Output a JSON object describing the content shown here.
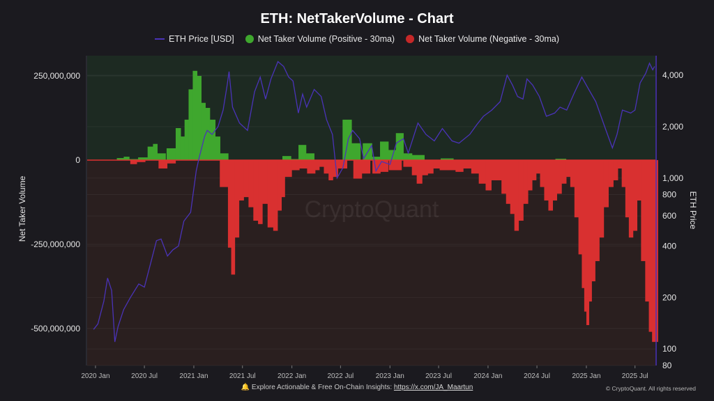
{
  "title": "ETH: NetTakerVolume - Chart",
  "legend": {
    "price_label": "ETH Price [USD]",
    "positive_label": "Net Taker Volume (Positive - 30ma)",
    "negative_label": "Net Taker Volume (Negative - 30ma)"
  },
  "footer": {
    "text": "Explore Actionable & Free On-Chain Insights:",
    "link": "https://x.com/JA_Maartun",
    "copyright": "© CryptoQuant. All rights reserved"
  },
  "watermark": "CryptoQuant",
  "colors": {
    "background": "#1b1a1f",
    "positive_zone": "#1d2a22",
    "negative_zone": "#2a1f1f",
    "positive": "#3fa72e",
    "negative": "#d93030",
    "price": "#4a33b8",
    "zero_line": "#e03030"
  },
  "chart_data": {
    "type": "bar",
    "title": "ETH: NetTakerVolume - Chart",
    "xlabel": "",
    "ylabel": "Net Taker Volume",
    "y2label": "ETH Price",
    "x_ticks": [
      "2020 Jan",
      "2020 Jul",
      "2021 Jan",
      "2021 Jul",
      "2022 Jan",
      "2022 Jul",
      "2023 Jan",
      "2023 Jul",
      "2024 Jan",
      "2024 Jul",
      "2025 Jan",
      "2025 Jul"
    ],
    "y_ticks": [
      "250,000,000",
      "0",
      "-250,000,000",
      "-500,000,000"
    ],
    "y_tick_values": [
      250000000,
      0,
      -250000000,
      -500000000
    ],
    "y2_ticks": [
      "4,000",
      "2,000",
      "1,000",
      "800",
      "600",
      "400",
      "200",
      "100",
      "80"
    ],
    "y2_tick_values": [
      4000,
      2000,
      1000,
      800,
      600,
      400,
      200,
      100,
      80
    ],
    "y2_scale": "log",
    "ylim": [
      -610000000,
      310000000
    ],
    "y2lim": [
      80,
      5200
    ],
    "xlim": [
      "2019-12-01",
      "2025-09-15"
    ],
    "legend_position": "top-center",
    "series": [
      {
        "name": "Net Taker Volume (Positive - 30ma)",
        "kind": "bar",
        "points": [
          [
            "2020-04-05",
            6000000
          ],
          [
            "2020-04-25",
            10000000
          ],
          [
            "2020-05-15",
            3000000
          ],
          [
            "2020-07-01",
            8000000
          ],
          [
            "2020-07-25",
            40000000
          ],
          [
            "2020-08-10",
            48000000
          ],
          [
            "2020-08-25",
            20000000
          ],
          [
            "2020-10-15",
            35000000
          ],
          [
            "2020-11-05",
            95000000
          ],
          [
            "2020-11-20",
            70000000
          ],
          [
            "2020-12-05",
            120000000
          ],
          [
            "2020-12-20",
            210000000
          ],
          [
            "2021-01-05",
            265000000
          ],
          [
            "2021-01-20",
            250000000
          ],
          [
            "2021-02-05",
            170000000
          ],
          [
            "2021-02-20",
            155000000
          ],
          [
            "2021-03-10",
            120000000
          ],
          [
            "2021-04-01",
            70000000
          ],
          [
            "2021-04-15",
            20000000
          ],
          [
            "2021-12-20",
            12000000
          ],
          [
            "2022-01-05",
            3000000
          ],
          [
            "2022-02-15",
            45000000
          ],
          [
            "2022-03-01",
            20000000
          ],
          [
            "2022-08-01",
            120000000
          ],
          [
            "2022-08-20",
            50000000
          ],
          [
            "2022-10-15",
            50000000
          ],
          [
            "2022-11-05",
            10000000
          ],
          [
            "2022-12-15",
            55000000
          ],
          [
            "2023-01-05",
            30000000
          ],
          [
            "2023-02-10",
            80000000
          ],
          [
            "2023-03-01",
            20000000
          ],
          [
            "2023-04-15",
            15000000
          ],
          [
            "2023-08-01",
            5000000
          ],
          [
            "2024-10-01",
            4000000
          ]
        ]
      },
      {
        "name": "Net Taker Volume (Negative - 30ma)",
        "kind": "bar",
        "points": [
          [
            "2020-05-25",
            -12000000
          ],
          [
            "2020-06-10",
            -6000000
          ],
          [
            "2020-09-15",
            -25000000
          ],
          [
            "2020-10-01",
            -10000000
          ],
          [
            "2021-05-01",
            -80000000
          ],
          [
            "2021-05-15",
            -260000000
          ],
          [
            "2021-05-25",
            -340000000
          ],
          [
            "2021-06-10",
            -230000000
          ],
          [
            "2021-06-25",
            -120000000
          ],
          [
            "2021-07-15",
            -110000000
          ],
          [
            "2021-08-01",
            -140000000
          ],
          [
            "2021-08-20",
            -180000000
          ],
          [
            "2021-09-05",
            -190000000
          ],
          [
            "2021-09-20",
            -130000000
          ],
          [
            "2021-10-15",
            -200000000
          ],
          [
            "2021-11-01",
            -210000000
          ],
          [
            "2021-11-15",
            -150000000
          ],
          [
            "2021-11-30",
            -110000000
          ],
          [
            "2021-12-10",
            -50000000
          ],
          [
            "2022-01-20",
            -30000000
          ],
          [
            "2022-02-05",
            -25000000
          ],
          [
            "2022-03-20",
            -40000000
          ],
          [
            "2022-04-05",
            -30000000
          ],
          [
            "2022-04-20",
            -20000000
          ],
          [
            "2022-05-10",
            -40000000
          ],
          [
            "2022-05-25",
            -60000000
          ],
          [
            "2022-06-10",
            -50000000
          ],
          [
            "2022-07-01",
            -25000000
          ],
          [
            "2022-09-10",
            -55000000
          ],
          [
            "2022-09-25",
            -40000000
          ],
          [
            "2022-11-20",
            -40000000
          ],
          [
            "2022-12-01",
            -35000000
          ],
          [
            "2023-01-20",
            -30000000
          ],
          [
            "2023-03-15",
            -20000000
          ],
          [
            "2023-04-01",
            -45000000
          ],
          [
            "2023-04-20",
            -70000000
          ],
          [
            "2023-05-10",
            -45000000
          ],
          [
            "2023-06-01",
            -40000000
          ],
          [
            "2023-06-20",
            -25000000
          ],
          [
            "2023-07-20",
            -30000000
          ],
          [
            "2023-08-20",
            -30000000
          ],
          [
            "2023-09-15",
            -35000000
          ],
          [
            "2023-10-15",
            -25000000
          ],
          [
            "2023-11-15",
            -40000000
          ],
          [
            "2023-12-10",
            -70000000
          ],
          [
            "2024-01-05",
            -90000000
          ],
          [
            "2024-01-20",
            -60000000
          ],
          [
            "2024-02-10",
            -60000000
          ],
          [
            "2024-03-01",
            -100000000
          ],
          [
            "2024-03-15",
            -130000000
          ],
          [
            "2024-04-01",
            -160000000
          ],
          [
            "2024-04-15",
            -210000000
          ],
          [
            "2024-05-01",
            -180000000
          ],
          [
            "2024-05-20",
            -130000000
          ],
          [
            "2024-06-05",
            -90000000
          ],
          [
            "2024-06-20",
            -60000000
          ],
          [
            "2024-07-05",
            -40000000
          ],
          [
            "2024-07-20",
            -80000000
          ],
          [
            "2024-08-05",
            -120000000
          ],
          [
            "2024-08-20",
            -150000000
          ],
          [
            "2024-09-05",
            -120000000
          ],
          [
            "2024-09-20",
            -100000000
          ],
          [
            "2024-10-10",
            -70000000
          ],
          [
            "2024-10-25",
            -50000000
          ],
          [
            "2024-11-10",
            -80000000
          ],
          [
            "2024-11-25",
            -170000000
          ],
          [
            "2024-12-10",
            -280000000
          ],
          [
            "2024-12-20",
            -380000000
          ],
          [
            "2024-12-28",
            -450000000
          ],
          [
            "2025-01-05",
            -490000000
          ],
          [
            "2025-01-15",
            -420000000
          ],
          [
            "2025-01-25",
            -360000000
          ],
          [
            "2025-02-10",
            -300000000
          ],
          [
            "2025-02-25",
            -230000000
          ],
          [
            "2025-03-15",
            -140000000
          ],
          [
            "2025-04-01",
            -80000000
          ],
          [
            "2025-04-20",
            -60000000
          ],
          [
            "2025-05-05",
            -25000000
          ],
          [
            "2025-05-20",
            -80000000
          ],
          [
            "2025-06-01",
            -170000000
          ],
          [
            "2025-06-15",
            -230000000
          ],
          [
            "2025-07-01",
            -210000000
          ],
          [
            "2025-07-15",
            -120000000
          ],
          [
            "2025-08-01",
            -300000000
          ],
          [
            "2025-08-15",
            -420000000
          ],
          [
            "2025-08-28",
            -510000000
          ],
          [
            "2025-09-08",
            -540000000
          ]
        ]
      },
      {
        "name": "ETH Price [USD]",
        "kind": "line",
        "axis": "right-log",
        "points": [
          [
            "2019-12-25",
            130
          ],
          [
            "2020-01-10",
            140
          ],
          [
            "2020-02-01",
            190
          ],
          [
            "2020-02-15",
            260
          ],
          [
            "2020-03-01",
            220
          ],
          [
            "2020-03-13",
            110
          ],
          [
            "2020-03-25",
            135
          ],
          [
            "2020-04-15",
            170
          ],
          [
            "2020-05-10",
            200
          ],
          [
            "2020-06-10",
            240
          ],
          [
            "2020-07-01",
            230
          ],
          [
            "2020-07-25",
            320
          ],
          [
            "2020-08-15",
            430
          ],
          [
            "2020-09-01",
            440
          ],
          [
            "2020-09-25",
            350
          ],
          [
            "2020-10-15",
            380
          ],
          [
            "2020-11-05",
            400
          ],
          [
            "2020-11-25",
            560
          ],
          [
            "2020-12-20",
            630
          ],
          [
            "2021-01-10",
            1100
          ],
          [
            "2021-01-20",
            1300
          ],
          [
            "2021-02-10",
            1750
          ],
          [
            "2021-02-20",
            1900
          ],
          [
            "2021-03-10",
            1800
          ],
          [
            "2021-04-01",
            2000
          ],
          [
            "2021-04-20",
            2500
          ],
          [
            "2021-05-05",
            3500
          ],
          [
            "2021-05-12",
            4200
          ],
          [
            "2021-05-25",
            2600
          ],
          [
            "2021-06-20",
            2100
          ],
          [
            "2021-07-20",
            1900
          ],
          [
            "2021-08-15",
            3200
          ],
          [
            "2021-09-05",
            3900
          ],
          [
            "2021-09-25",
            2900
          ],
          [
            "2021-10-15",
            3800
          ],
          [
            "2021-11-10",
            4800
          ],
          [
            "2021-12-01",
            4500
          ],
          [
            "2021-12-20",
            3900
          ],
          [
            "2022-01-05",
            3700
          ],
          [
            "2022-01-25",
            2400
          ],
          [
            "2022-02-10",
            3100
          ],
          [
            "2022-02-25",
            2600
          ],
          [
            "2022-03-25",
            3300
          ],
          [
            "2022-04-20",
            3000
          ],
          [
            "2022-05-10",
            2200
          ],
          [
            "2022-06-01",
            1800
          ],
          [
            "2022-06-18",
            1000
          ],
          [
            "2022-07-10",
            1150
          ],
          [
            "2022-07-30",
            1700
          ],
          [
            "2022-08-15",
            1900
          ],
          [
            "2022-09-10",
            1700
          ],
          [
            "2022-09-25",
            1300
          ],
          [
            "2022-10-25",
            1550
          ],
          [
            "2022-11-10",
            1100
          ],
          [
            "2022-12-01",
            1250
          ],
          [
            "2023-01-01",
            1200
          ],
          [
            "2023-01-25",
            1600
          ],
          [
            "2023-02-20",
            1700
          ],
          [
            "2023-03-10",
            1400
          ],
          [
            "2023-04-15",
            2100
          ],
          [
            "2023-05-15",
            1800
          ],
          [
            "2023-06-15",
            1650
          ],
          [
            "2023-07-15",
            1950
          ],
          [
            "2023-08-20",
            1650
          ],
          [
            "2023-09-15",
            1600
          ],
          [
            "2023-10-25",
            1800
          ],
          [
            "2023-11-20",
            2050
          ],
          [
            "2023-12-15",
            2300
          ],
          [
            "2024-01-15",
            2500
          ],
          [
            "2024-02-15",
            2800
          ],
          [
            "2024-03-12",
            4000
          ],
          [
            "2024-04-01",
            3500
          ],
          [
            "2024-04-20",
            3000
          ],
          [
            "2024-05-10",
            2900
          ],
          [
            "2024-05-25",
            3800
          ],
          [
            "2024-06-15",
            3500
          ],
          [
            "2024-07-10",
            3000
          ],
          [
            "2024-08-05",
            2300
          ],
          [
            "2024-09-05",
            2400
          ],
          [
            "2024-09-25",
            2600
          ],
          [
            "2024-10-20",
            2500
          ],
          [
            "2024-11-15",
            3100
          ],
          [
            "2024-12-15",
            3900
          ],
          [
            "2025-01-10",
            3300
          ],
          [
            "2025-02-05",
            2800
          ],
          [
            "2025-03-10",
            2000
          ],
          [
            "2025-04-08",
            1500
          ],
          [
            "2025-04-25",
            1800
          ],
          [
            "2025-05-15",
            2500
          ],
          [
            "2025-06-15",
            2400
          ],
          [
            "2025-07-01",
            2500
          ],
          [
            "2025-07-20",
            3600
          ],
          [
            "2025-08-10",
            4100
          ],
          [
            "2025-08-24",
            4700
          ],
          [
            "2025-09-05",
            4300
          ],
          [
            "2025-09-12",
            4500
          ]
        ]
      }
    ]
  }
}
